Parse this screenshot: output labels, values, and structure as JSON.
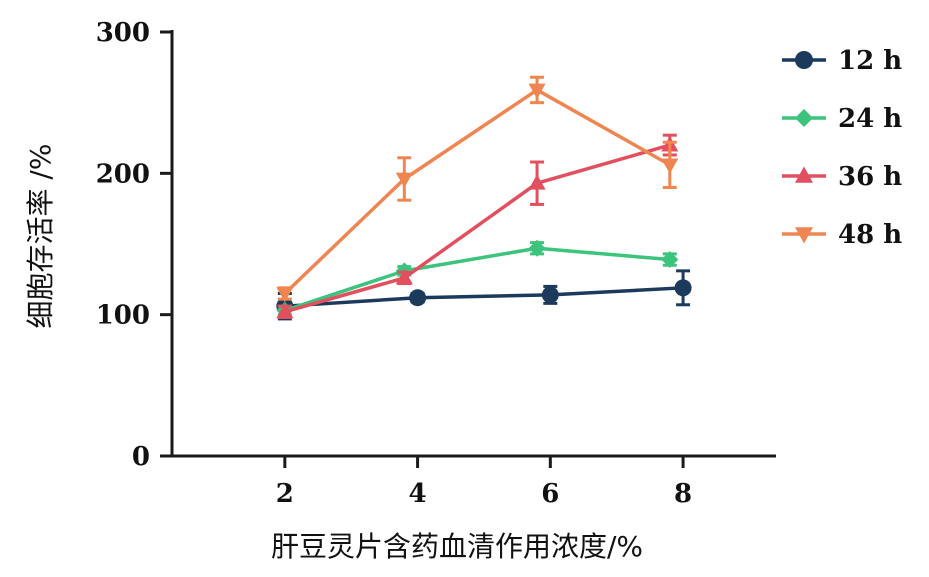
{
  "chart_data": {
    "type": "line",
    "title": "",
    "xlabel": "肝豆灵片含药血清作用浓度/%",
    "ylabel": "细胞存活率 /%",
    "x": [
      2,
      4,
      6,
      8
    ],
    "x_ticks": [
      "2",
      "4",
      "6",
      "8"
    ],
    "y_ticks": [
      "0",
      "100",
      "200",
      "300"
    ],
    "xlim": [
      0.3,
      9.4
    ],
    "ylim": [
      0,
      300
    ],
    "grid": false,
    "legend_position": "right",
    "series": [
      {
        "name": "12 h",
        "color": "#1b3a5c",
        "marker": "circle",
        "values": [
          106,
          112,
          114,
          119
        ],
        "errors": [
          9,
          3,
          6,
          12
        ]
      },
      {
        "name": "24 h",
        "color": "#3cc47c",
        "marker": "diamond",
        "values": [
          103,
          131,
          147,
          139
        ],
        "errors": [
          3,
          3,
          4,
          4
        ]
      },
      {
        "name": "36 h",
        "color": "#e2505f",
        "marker": "triangle-up",
        "values": [
          102,
          126,
          193,
          220
        ],
        "errors": [
          4,
          4,
          15,
          7
        ]
      },
      {
        "name": "48 h",
        "color": "#ef8550",
        "marker": "triangle-down",
        "values": [
          115,
          196,
          259,
          206
        ],
        "errors": [
          4,
          15,
          9,
          16
        ]
      }
    ]
  }
}
